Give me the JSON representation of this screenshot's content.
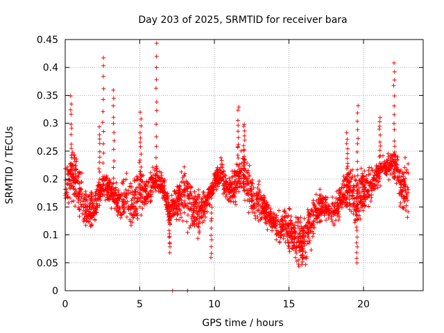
{
  "chart_data": {
    "type": "scatter",
    "title": "Day 203 of 2025, SRMTID for receiver bara",
    "xlabel": "GPS time / hours",
    "ylabel": "SRMTID / TECUs",
    "xlim": [
      0,
      24
    ],
    "ylim": [
      0,
      0.45
    ],
    "x_ticks": [
      0,
      5,
      10,
      15,
      20
    ],
    "x_tick_labels": [
      "0",
      "5",
      "10",
      "15",
      "20"
    ],
    "y_ticks": [
      0,
      0.05,
      0.1,
      0.15,
      0.2,
      0.25,
      0.3,
      0.35,
      0.4,
      0.45
    ],
    "y_tick_labels": [
      "0",
      "0.05",
      "0.1",
      "0.15",
      "0.2",
      "0.25",
      "0.3",
      "0.35",
      "0.4",
      "0.45"
    ],
    "grid": true,
    "marker": "+",
    "color": "#ff0000",
    "trend": [
      {
        "x": 0.0,
        "y": 0.19
      },
      {
        "x": 0.5,
        "y": 0.21
      },
      {
        "x": 1.0,
        "y": 0.17
      },
      {
        "x": 1.5,
        "y": 0.14
      },
      {
        "x": 2.0,
        "y": 0.15
      },
      {
        "x": 2.5,
        "y": 0.19
      },
      {
        "x": 3.0,
        "y": 0.18
      },
      {
        "x": 3.5,
        "y": 0.16
      },
      {
        "x": 4.0,
        "y": 0.17
      },
      {
        "x": 4.5,
        "y": 0.15
      },
      {
        "x": 5.0,
        "y": 0.19
      },
      {
        "x": 5.5,
        "y": 0.17
      },
      {
        "x": 6.0,
        "y": 0.2
      },
      {
        "x": 6.5,
        "y": 0.19
      },
      {
        "x": 7.0,
        "y": 0.14
      },
      {
        "x": 7.5,
        "y": 0.16
      },
      {
        "x": 8.0,
        "y": 0.18
      },
      {
        "x": 8.5,
        "y": 0.15
      },
      {
        "x": 9.0,
        "y": 0.14
      },
      {
        "x": 9.5,
        "y": 0.16
      },
      {
        "x": 10.0,
        "y": 0.2
      },
      {
        "x": 10.5,
        "y": 0.21
      },
      {
        "x": 11.0,
        "y": 0.18
      },
      {
        "x": 11.5,
        "y": 0.2
      },
      {
        "x": 12.0,
        "y": 0.21
      },
      {
        "x": 12.5,
        "y": 0.17
      },
      {
        "x": 13.0,
        "y": 0.16
      },
      {
        "x": 13.5,
        "y": 0.14
      },
      {
        "x": 14.0,
        "y": 0.12
      },
      {
        "x": 14.5,
        "y": 0.11
      },
      {
        "x": 15.0,
        "y": 0.11
      },
      {
        "x": 15.5,
        "y": 0.1
      },
      {
        "x": 16.0,
        "y": 0.09
      },
      {
        "x": 16.5,
        "y": 0.12
      },
      {
        "x": 17.0,
        "y": 0.15
      },
      {
        "x": 17.5,
        "y": 0.15
      },
      {
        "x": 18.0,
        "y": 0.14
      },
      {
        "x": 18.5,
        "y": 0.16
      },
      {
        "x": 19.0,
        "y": 0.19
      },
      {
        "x": 19.5,
        "y": 0.16
      },
      {
        "x": 20.0,
        "y": 0.18
      },
      {
        "x": 20.5,
        "y": 0.19
      },
      {
        "x": 21.0,
        "y": 0.21
      },
      {
        "x": 21.5,
        "y": 0.22
      },
      {
        "x": 22.0,
        "y": 0.23
      },
      {
        "x": 22.5,
        "y": 0.19
      },
      {
        "x": 23.0,
        "y": 0.18
      }
    ],
    "spikes": [
      {
        "x": 0.4,
        "y": 0.35
      },
      {
        "x": 2.3,
        "y": 0.29
      },
      {
        "x": 2.55,
        "y": 0.42
      },
      {
        "x": 3.25,
        "y": 0.36
      },
      {
        "x": 5.05,
        "y": 0.32
      },
      {
        "x": 6.1,
        "y": 0.44
      },
      {
        "x": 7.0,
        "y": 0.07
      },
      {
        "x": 9.8,
        "y": 0.06
      },
      {
        "x": 11.6,
        "y": 0.33
      },
      {
        "x": 12.0,
        "y": 0.3
      },
      {
        "x": 15.9,
        "y": 0.05
      },
      {
        "x": 18.9,
        "y": 0.28
      },
      {
        "x": 19.6,
        "y": 0.33
      },
      {
        "x": 19.55,
        "y": 0.05
      },
      {
        "x": 21.1,
        "y": 0.31
      },
      {
        "x": 22.05,
        "y": 0.41
      }
    ],
    "zero_points": [
      {
        "x": 7.2,
        "y": 0.0
      },
      {
        "x": 8.2,
        "y": 0.0
      }
    ]
  }
}
